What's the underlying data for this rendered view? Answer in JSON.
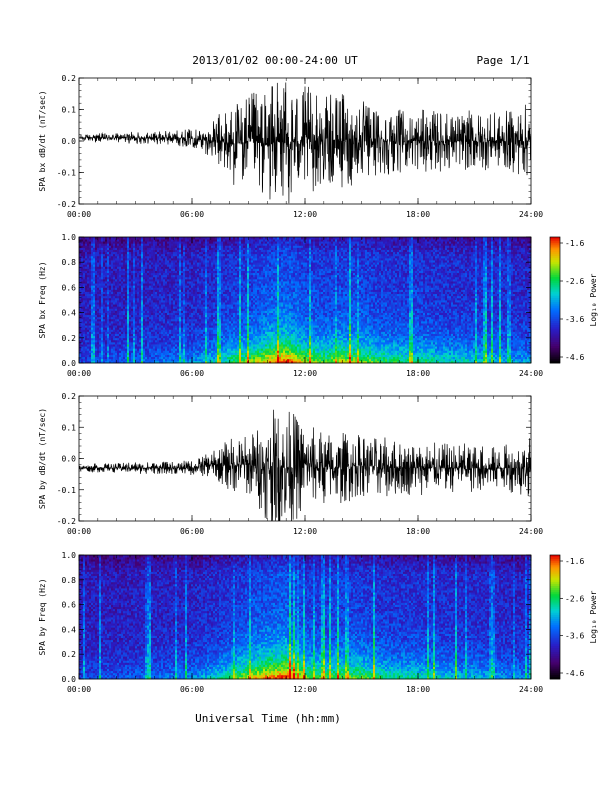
{
  "header": {
    "date_range": "2013/01/02  00:00-24:00 UT",
    "page": "Page 1/1"
  },
  "footer": {
    "xlabel": "Universal Time (hh:mm)"
  },
  "colorbar": {
    "label": "Log₁₀ Power",
    "ticks": [
      "-1.6",
      "-2.6",
      "-3.6",
      "-4.6"
    ],
    "range": [
      -4.6,
      -1.6
    ],
    "colormap": "rainbow (black-purple-blue-cyan-green-yellow-orange-red)"
  },
  "chart_data": [
    {
      "type": "line",
      "panel": "SPA bx dB/dt",
      "ylabel": "SPA bx dB/dt (nT/sec)",
      "x_ticks": [
        "00:00",
        "06:00",
        "12:00",
        "18:00",
        "24:00"
      ],
      "y_ticks": [
        "0.2",
        "0.1",
        "0.0",
        "-0.1",
        "-0.2"
      ],
      "xlim_hours": [
        0,
        24
      ],
      "ylim": [
        -0.2,
        0.2
      ],
      "series": [
        {
          "x_hours": [
            0,
            1,
            2,
            3,
            4,
            5,
            6,
            7,
            7.5,
            8,
            9,
            10,
            10.5,
            11,
            11.5,
            12,
            13,
            14,
            15,
            16,
            17,
            18,
            19,
            20,
            21,
            22,
            23,
            24
          ],
          "y_envelope": [
            0.01,
            0.015,
            0.015,
            0.02,
            0.02,
            0.025,
            0.03,
            0.05,
            0.1,
            0.13,
            0.15,
            0.18,
            0.2,
            0.2,
            0.19,
            0.18,
            0.14,
            0.16,
            0.13,
            0.12,
            0.1,
            0.1,
            0.1,
            0.09,
            0.1,
            0.09,
            0.1,
            0.13
          ],
          "y_offset": [
            0.01,
            0.01,
            0.01,
            0.01,
            0.01,
            0.01,
            0.01,
            0.0,
            0.0,
            -0.01,
            0.0,
            -0.01,
            0.0,
            -0.01,
            0.0,
            0.0,
            0.0,
            0.0,
            0.0,
            0.0,
            0.0,
            0.0,
            0.0,
            0.0,
            0.0,
            0.0,
            0.0,
            0.0
          ]
        }
      ]
    },
    {
      "type": "heatmap",
      "panel": "SPA bx Freq",
      "ylabel": "SPA bx Freq (Hz)",
      "x_ticks": [
        "00:00",
        "06:00",
        "12:00",
        "18:00",
        "24:00"
      ],
      "y_ticks": [
        "1.0",
        "0.8",
        "0.6",
        "0.4",
        "0.2",
        "0.0"
      ],
      "xlim_hours": [
        0,
        24
      ],
      "ylim": [
        0.0,
        1.0
      ],
      "z_label": "Log₁₀ Power",
      "zlim": [
        -4.6,
        -1.6
      ],
      "activity_hours": [
        0,
        2,
        4,
        6,
        7,
        8,
        9,
        10,
        11,
        12,
        13,
        14,
        15,
        16,
        17,
        18,
        19,
        20,
        21,
        22,
        23,
        24
      ],
      "activity_level": [
        0.15,
        0.2,
        0.25,
        0.3,
        0.4,
        0.55,
        0.65,
        0.85,
        1.0,
        0.75,
        0.65,
        0.75,
        0.7,
        0.6,
        0.55,
        0.55,
        0.5,
        0.45,
        0.45,
        0.4,
        0.35,
        0.35
      ]
    },
    {
      "type": "line",
      "panel": "SPA by dB/dt",
      "ylabel": "SPA by dB/dt (nT/sec)",
      "x_ticks": [
        "00:00",
        "06:00",
        "12:00",
        "18:00",
        "24:00"
      ],
      "y_ticks": [
        "0.2",
        "0.1",
        "0.0",
        "-0.1",
        "-0.2"
      ],
      "xlim_hours": [
        0,
        24
      ],
      "ylim": [
        -0.2,
        0.2
      ],
      "series": [
        {
          "x_hours": [
            0,
            1,
            2,
            3,
            4,
            5,
            6,
            7,
            7.5,
            8,
            9,
            10,
            10.5,
            11,
            11.5,
            12,
            13,
            14,
            15,
            16,
            17,
            18,
            19,
            20,
            21,
            22,
            23,
            24
          ],
          "y_envelope": [
            0.01,
            0.015,
            0.015,
            0.02,
            0.02,
            0.02,
            0.025,
            0.04,
            0.06,
            0.09,
            0.1,
            0.17,
            0.2,
            0.2,
            0.18,
            0.14,
            0.12,
            0.12,
            0.1,
            0.1,
            0.09,
            0.09,
            0.08,
            0.08,
            0.08,
            0.07,
            0.08,
            0.1
          ],
          "y_offset": [
            -0.03,
            -0.03,
            -0.03,
            -0.03,
            -0.03,
            -0.03,
            -0.03,
            -0.02,
            -0.02,
            -0.02,
            -0.02,
            -0.03,
            -0.03,
            -0.03,
            -0.03,
            -0.02,
            -0.03,
            -0.03,
            -0.02,
            -0.03,
            -0.03,
            -0.03,
            -0.03,
            -0.03,
            -0.03,
            -0.03,
            -0.03,
            -0.03
          ]
        }
      ]
    },
    {
      "type": "heatmap",
      "panel": "SPA by Freq",
      "ylabel": "SPA by Freq (Hz)",
      "x_ticks": [
        "00:00",
        "06:00",
        "12:00",
        "18:00",
        "24:00"
      ],
      "y_ticks": [
        "1.0",
        "0.8",
        "0.6",
        "0.4",
        "0.2",
        "0.0"
      ],
      "xlim_hours": [
        0,
        24
      ],
      "ylim": [
        0.0,
        1.0
      ],
      "z_label": "Log₁₀ Power",
      "zlim": [
        -4.6,
        -1.6
      ],
      "activity_hours": [
        0,
        2,
        4,
        6,
        7,
        8,
        9,
        10,
        11,
        12,
        13,
        14,
        15,
        16,
        17,
        18,
        19,
        20,
        21,
        22,
        23,
        24
      ],
      "activity_level": [
        0.15,
        0.2,
        0.25,
        0.3,
        0.4,
        0.55,
        0.75,
        0.9,
        1.0,
        0.7,
        0.6,
        0.65,
        0.65,
        0.55,
        0.5,
        0.5,
        0.45,
        0.4,
        0.4,
        0.35,
        0.3,
        0.3
      ]
    }
  ]
}
